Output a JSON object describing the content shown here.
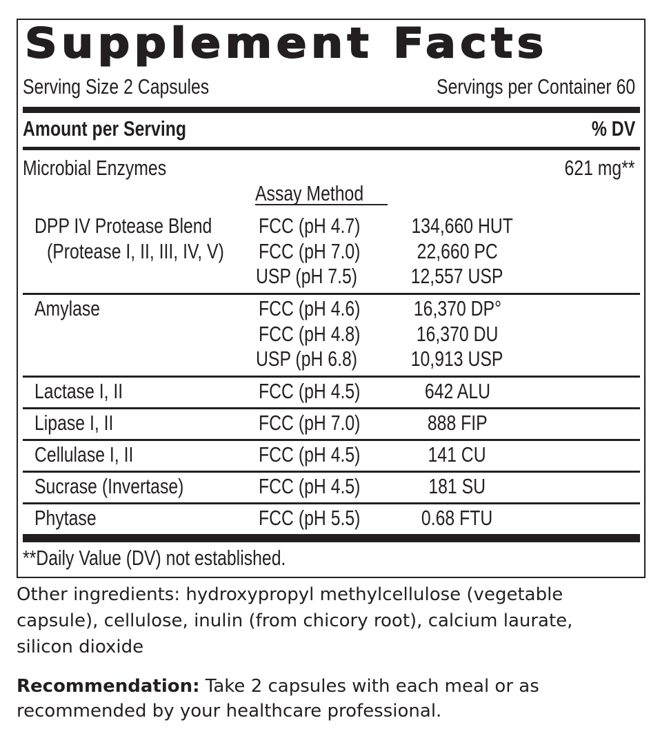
{
  "title": "Supplement Facts",
  "serving_size": "Serving Size 2 Capsules",
  "servings_per_container": "Servings per Container 60",
  "amount_header": "Amount per Serving",
  "dv_header": "% DV",
  "main_ingredient": {
    "name": "Microbial Enzymes",
    "amount": "621 mg**"
  },
  "assay_header": "Assay Method",
  "rows": [
    {
      "name": "DPP IV Protease Blend",
      "sub": "(Protease I, II, III, IV, V)",
      "assays": [
        "FCC (pH 4.7)",
        "FCC (pH 7.0)",
        "USP (pH 7.5)"
      ],
      "amounts": [
        "134,660 HUT",
        "22,660 PC",
        "12,557 USP"
      ]
    },
    {
      "name": "Amylase",
      "assays": [
        "FCC (pH 4.6)",
        "FCC (pH 4.8)",
        "USP (pH 6.8)"
      ],
      "amounts": [
        "16,370 DP°",
        "16,370 DU",
        "10,913 USP"
      ]
    },
    {
      "name": "Lactase I, II",
      "assays": [
        "FCC (pH 4.5)"
      ],
      "amounts": [
        "642 ALU"
      ]
    },
    {
      "name": "Lipase I, II",
      "assays": [
        "FCC (pH 7.0)"
      ],
      "amounts": [
        "888 FIP"
      ]
    },
    {
      "name": "Cellulase I, II",
      "assays": [
        "FCC (pH 4.5)"
      ],
      "amounts": [
        "141 CU"
      ]
    },
    {
      "name": "Sucrase (Invertase)",
      "assays": [
        "FCC (pH 4.5)"
      ],
      "amounts": [
        "181 SU"
      ]
    },
    {
      "name": "Phytase",
      "assays": [
        "FCC (pH 5.5)"
      ],
      "amounts": [
        "0.68 FTU"
      ]
    }
  ],
  "footnote": "**Daily Value (DV) not established.",
  "other_ingredients": [
    "Other ingredients: hydroxypropyl methylcellulose (vegetable",
    "capsule), cellulose, inulin (from chicory root), calcium laurate,",
    "silicon dioxide"
  ],
  "recommendation": {
    "label": "Recommendation:",
    "text_line1": " Take 2 capsules with each meal or as",
    "text_line2": "recommended by your healthcare professional."
  }
}
